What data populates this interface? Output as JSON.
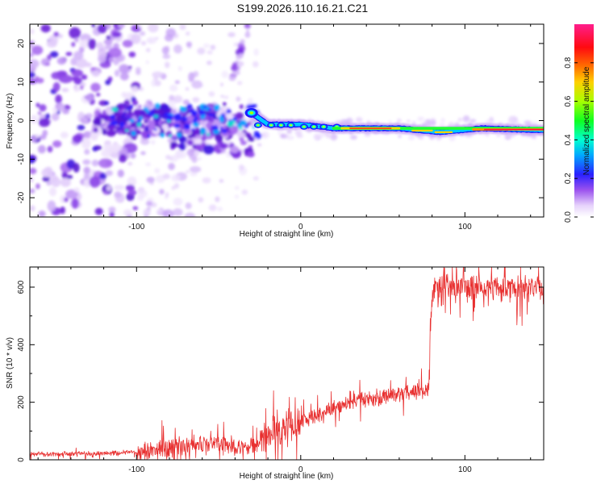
{
  "title": "S199.2026.110.16.21.C21",
  "chart_data": [
    {
      "type": "heatmap",
      "name": "spectrogram",
      "xlabel": "Height of straight line (km)",
      "ylabel": "Frequency (Hz)",
      "xlim": [
        -165,
        148
      ],
      "ylim": [
        -25,
        25
      ],
      "x_ticks": [
        -100,
        0,
        100
      ],
      "x_tick_labels": [
        "-100",
        "0",
        "100"
      ],
      "y_ticks": [
        -20,
        -10,
        0,
        10,
        20
      ],
      "y_tick_labels": [
        "-20",
        "-10",
        "0",
        "10",
        "20"
      ],
      "colorbar": {
        "label": "Normalized spectral amplitude",
        "range": [
          0,
          1
        ],
        "ticks": [
          0.0,
          0.2,
          0.4,
          0.6,
          0.8
        ],
        "tick_labels": [
          "0.0",
          "0.2",
          "0.4",
          "0.6",
          "0.8"
        ],
        "colors": [
          "#ffffff",
          "#c79cf5",
          "#6a1ed8",
          "#1c1cff",
          "#00b7ff",
          "#00ffb0",
          "#3cff00",
          "#d8ff00",
          "#ffb000",
          "#ff4000",
          "#ff0040",
          "#ff1493"
        ]
      },
      "features": {
        "noise_region_x": [
          -165,
          -100
        ],
        "transition_region_x": [
          -125,
          -30
        ],
        "ridge_points": [
          {
            "x": -30,
            "y": 2
          },
          {
            "x": -20,
            "y": -1
          },
          {
            "x": 0,
            "y": -1
          },
          {
            "x": 20,
            "y": -2
          },
          {
            "x": 60,
            "y": -2
          },
          {
            "x": 85,
            "y": -3
          },
          {
            "x": 110,
            "y": -2
          },
          {
            "x": 148,
            "y": -2.5
          }
        ]
      }
    },
    {
      "type": "line",
      "name": "snr",
      "color": "#e83030",
      "xlabel": "Height of straight line (km)",
      "ylabel": "SNR (10 * v/v)",
      "xlim": [
        -165,
        148
      ],
      "ylim": [
        0,
        670
      ],
      "x_ticks": [
        -100,
        0,
        100
      ],
      "x_tick_labels": [
        "-100",
        "0",
        "100"
      ],
      "y_ticks": [
        0,
        200,
        400,
        600
      ],
      "y_tick_labels": [
        "0",
        "200",
        "400",
        "600"
      ],
      "series": [
        {
          "name": "SNR",
          "x": [
            -165,
            -140,
            -120,
            -100,
            -80,
            -60,
            -50,
            -40,
            -30,
            -20,
            -10,
            0,
            10,
            20,
            30,
            40,
            50,
            60,
            70,
            78,
            79,
            80,
            82,
            90,
            100,
            110,
            120,
            130,
            140,
            148
          ],
          "y": [
            20,
            20,
            22,
            28,
            40,
            55,
            60,
            45,
            35,
            90,
            110,
            130,
            150,
            180,
            200,
            210,
            220,
            230,
            240,
            245,
            480,
            560,
            600,
            600,
            595,
            600,
            595,
            600,
            595,
            590
          ]
        }
      ]
    }
  ]
}
